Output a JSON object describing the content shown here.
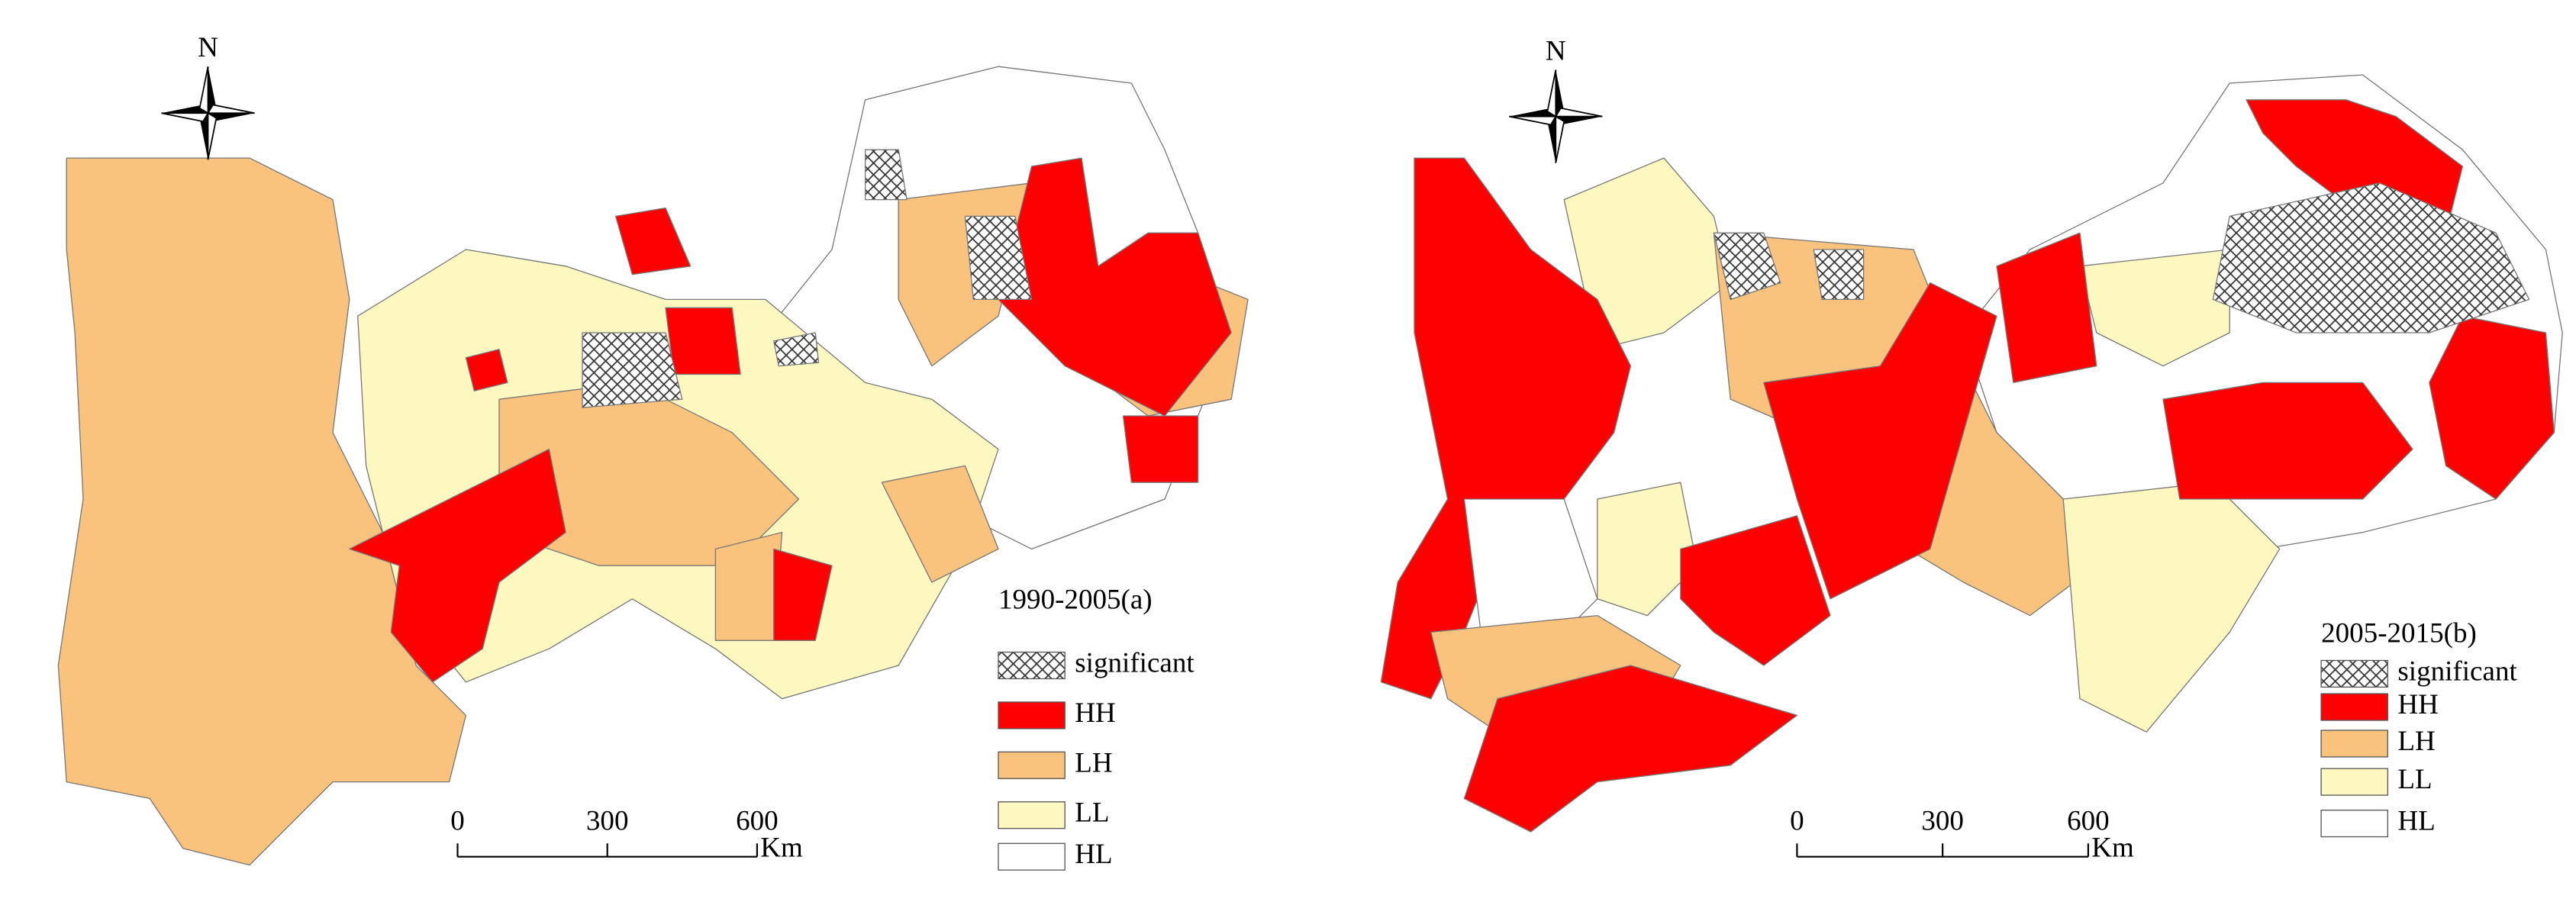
{
  "panels": [
    {
      "north": "N",
      "title": "1990-2005(a)",
      "legend": [
        {
          "label": "significant",
          "fill": "hatch"
        },
        {
          "label": "HH",
          "fill": "#ff0000"
        },
        {
          "label": "LH",
          "fill": "#f9c27d"
        },
        {
          "label": "LL",
          "fill": "#fdf8c0"
        },
        {
          "label": "HL",
          "fill": "#ffffff"
        }
      ],
      "scale_bar": {
        "ticks": [
          0,
          300,
          600
        ],
        "unit": "Km"
      }
    },
    {
      "north": "N",
      "title": "2005-2015(b)",
      "legend": [
        {
          "label": "significant",
          "fill": "hatch"
        },
        {
          "label": "HH",
          "fill": "#ff0000"
        },
        {
          "label": "LH",
          "fill": "#f9c27d"
        },
        {
          "label": "LL",
          "fill": "#fdf8c0"
        },
        {
          "label": "HL",
          "fill": "#ffffff"
        }
      ],
      "scale_bar": {
        "ticks": [
          0,
          300,
          600
        ],
        "unit": "Km"
      }
    }
  ]
}
